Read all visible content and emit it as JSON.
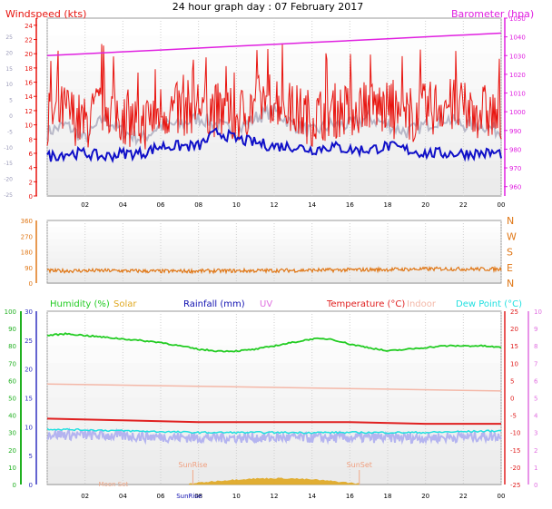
{
  "title": "24 hour graph day : 07 February 2017",
  "colors": {
    "wind": "#e8140f",
    "wind_avg": "#1010c8",
    "gust_shadow": "#b8b8c8",
    "baro": "#e020e0",
    "dir": "#e07818",
    "humidity": "#22cc22",
    "solar": "#e0a820",
    "rain": "#1010b0",
    "uv": "#e070e0",
    "temp": "#e02020",
    "indoor": "#f4b8a8",
    "dew": "#22e0e0",
    "dewfill": "#b4b4f0",
    "axis_green": "#20b020",
    "axis_blue": "#3030c0"
  },
  "x_ticks": [
    "02",
    "04",
    "06",
    "08",
    "10",
    "12",
    "14",
    "16",
    "18",
    "20",
    "22",
    "00"
  ],
  "chart_data": [
    {
      "type": "line",
      "panel": "wind-baro",
      "left_axis_title": "Windspeed (kts)",
      "right_axis_title": "Barometer (hpa)",
      "left_ticks": [
        "24",
        "22",
        "20",
        "18",
        "16",
        "14",
        "12",
        "10",
        "8",
        "6",
        "4",
        "2",
        "0"
      ],
      "outer_left_ticks": [
        "25",
        "20",
        "15",
        "10",
        "5",
        "0",
        "-5",
        "-10",
        "-15",
        "-20",
        "-25"
      ],
      "right_ticks": [
        "1050",
        "1040",
        "1030",
        "1020",
        "1010",
        "1000",
        "990",
        "980",
        "970",
        "960"
      ],
      "ylim_wind": [
        0,
        25
      ],
      "ylim_baro": [
        955,
        1050
      ],
      "series": [
        {
          "x": [
            0,
            1,
            2,
            3,
            4,
            5,
            6,
            7,
            8,
            9,
            10,
            11,
            12,
            13,
            14,
            15,
            16,
            17,
            18,
            19,
            20,
            21,
            22,
            23,
            24
          ],
          "values": [
            11,
            12,
            10,
            13,
            11,
            10,
            12,
            12,
            13,
            12,
            11,
            13,
            14,
            12,
            11,
            12,
            12,
            13,
            12,
            11,
            12,
            13,
            12,
            12,
            11
          ]
        },
        {
          "x": [
            0,
            1,
            2,
            3,
            4,
            5,
            6,
            7,
            8,
            9,
            10,
            11,
            12,
            13,
            14,
            15,
            16,
            17,
            18,
            19,
            20,
            21,
            22,
            23,
            24
          ],
          "values": [
            5.5,
            6,
            6,
            5.5,
            6,
            6,
            7,
            7,
            7,
            9,
            8,
            7.5,
            7,
            7,
            6.5,
            7,
            6.5,
            6.5,
            7,
            6.5,
            6,
            6,
            6,
            6,
            6
          ]
        },
        {
          "x": [
            0,
            2,
            4,
            6,
            8,
            10,
            12,
            14,
            16,
            18,
            20,
            22,
            24
          ],
          "values": [
            1030,
            1031,
            1032,
            1033,
            1034,
            1035,
            1036,
            1037,
            1038,
            1039,
            1040,
            1041,
            1042
          ]
        }
      ]
    },
    {
      "type": "line",
      "panel": "direction",
      "left_ticks": [
        "360",
        "270",
        "180",
        "90",
        "0"
      ],
      "right_ticks": [
        "N",
        "W",
        "S",
        "E",
        "N"
      ],
      "ylim": [
        0,
        360
      ],
      "series": [
        {
          "x": [
            0,
            3,
            6,
            9,
            12,
            15,
            18,
            21,
            24
          ],
          "values": [
            70,
            72,
            68,
            70,
            72,
            75,
            78,
            82,
            80
          ]
        }
      ]
    },
    {
      "type": "line",
      "panel": "temp-hum",
      "legend": [
        "Humidity (%)",
        "Solar",
        "Rainfall (mm)",
        "UV",
        "Temperature (°C)",
        "Indoor",
        "Dew Point (°C)"
      ],
      "outer_left_ticks": [
        "100",
        "90",
        "80",
        "70",
        "60",
        "50",
        "40",
        "30",
        "20",
        "10",
        "0"
      ],
      "left_ticks": [
        "30",
        "25",
        "20",
        "15",
        "10",
        "5",
        "0"
      ],
      "right_ticks": [
        "25",
        "20",
        "15",
        "10",
        "5",
        "0",
        "-5",
        "-10",
        "-15",
        "-20",
        "-25"
      ],
      "outer_right_ticks": [
        "10",
        "9",
        "8",
        "7",
        "6",
        "5",
        "4",
        "3",
        "2",
        "1",
        "0"
      ],
      "annotations": [
        "SunRise",
        "SunSet",
        "SunRise",
        "Moon Set"
      ],
      "series": [
        {
          "name": "Humidity (%)",
          "x": [
            0,
            1,
            2,
            3,
            4,
            5,
            6,
            7,
            8,
            9,
            10,
            11,
            12,
            13,
            14,
            15,
            16,
            17,
            18,
            19,
            20,
            21,
            22,
            23,
            24
          ],
          "values": [
            86,
            87,
            86,
            85,
            84,
            83,
            82,
            80,
            78,
            77,
            77,
            78,
            80,
            82,
            84,
            84,
            81,
            79,
            77,
            78,
            79,
            80,
            80,
            80,
            79
          ]
        },
        {
          "name": "Temperature (°C)",
          "x": [
            0,
            4,
            8,
            12,
            16,
            20,
            24
          ],
          "values": [
            -6,
            -6.5,
            -7,
            -7,
            -7,
            -7.5,
            -7.5
          ]
        },
        {
          "name": "Dew Point (°C)",
          "x": [
            0,
            4,
            8,
            12,
            16,
            20,
            24
          ],
          "values": [
            -9,
            -9.5,
            -10,
            -10,
            -10,
            -10,
            -9.5
          ]
        },
        {
          "name": "Indoor",
          "x": [
            0,
            6,
            12,
            18,
            24
          ],
          "values": [
            4,
            3.5,
            3,
            2.5,
            2
          ]
        }
      ]
    }
  ]
}
